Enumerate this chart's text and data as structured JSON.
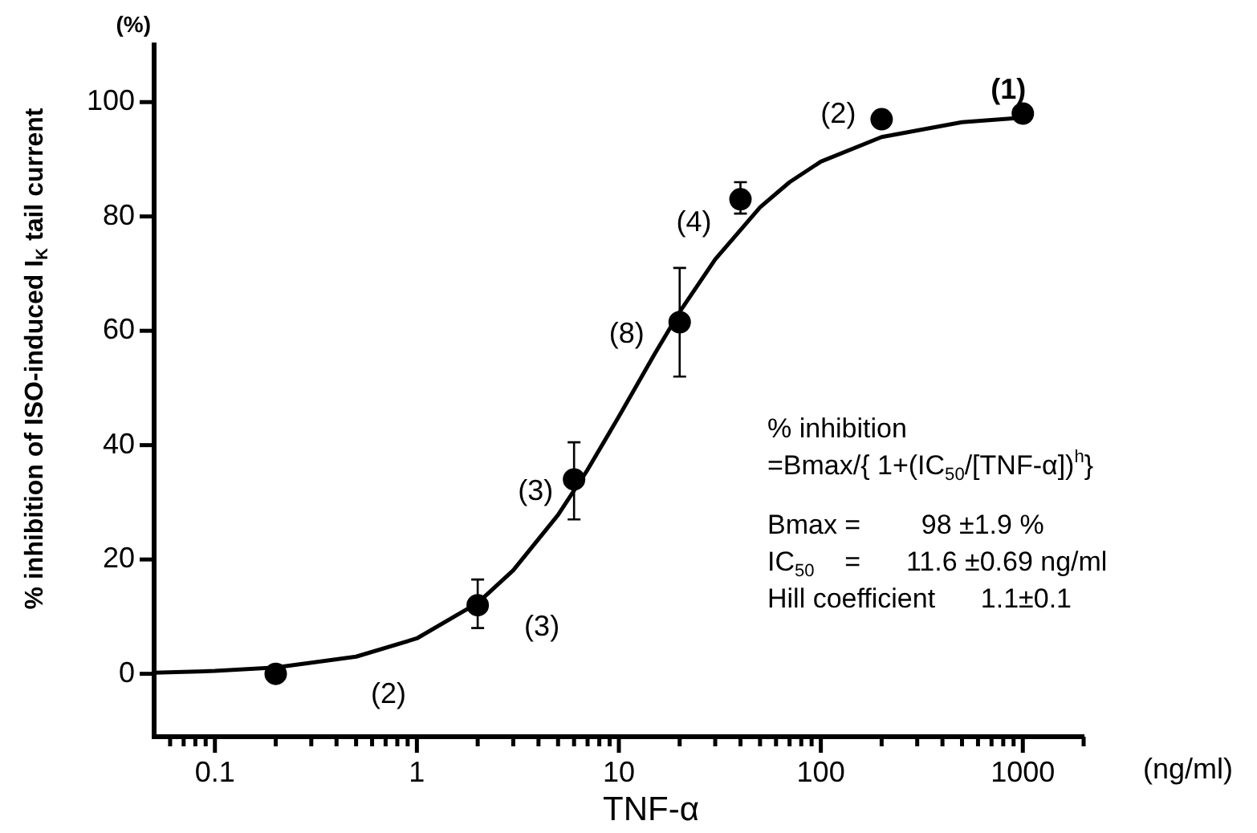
{
  "chart_data": {
    "type": "scatter",
    "xlabel": "TNF-α",
    "ylabel": "% inhibition of ISO-induced I$_{K}$ tail current",
    "log": "x",
    "xlim": [
      0.05,
      2000
    ],
    "ylim": [
      -11,
      110
    ],
    "xticks": [
      {
        "value": 0.06,
        "label": null
      },
      {
        "value": 0.07,
        "label": null
      },
      {
        "value": 0.08,
        "label": null
      },
      {
        "value": 0.09,
        "label": null
      },
      0.1,
      {
        "value": 0.2,
        "label": null
      },
      {
        "value": 0.3,
        "label": null
      },
      {
        "value": 0.4,
        "label": null
      },
      {
        "value": 0.5,
        "label": null
      },
      {
        "value": 0.6,
        "label": null
      },
      {
        "value": 0.7,
        "label": null
      },
      {
        "value": 0.8,
        "label": null
      },
      {
        "value": 0.9,
        "label": null
      },
      1,
      {
        "value": 2,
        "label": null
      },
      {
        "value": 3,
        "label": null
      },
      {
        "value": 4,
        "label": null
      },
      {
        "value": 5,
        "label": null
      },
      {
        "value": 6,
        "label": null
      },
      {
        "value": 7,
        "label": null
      },
      {
        "value": 8,
        "label": null
      },
      {
        "value": 9,
        "label": null
      },
      10,
      {
        "value": 20,
        "label": null
      },
      {
        "value": 30,
        "label": null
      },
      {
        "value": 40,
        "label": null
      },
      {
        "value": 50,
        "label": null
      },
      {
        "value": 60,
        "label": null
      },
      {
        "value": 70,
        "label": null
      },
      {
        "value": 80,
        "label": null
      },
      {
        "value": 90,
        "label": null
      },
      100,
      {
        "value": 200,
        "label": null
      },
      {
        "value": 300,
        "label": null
      },
      {
        "value": 400,
        "label": null
      },
      {
        "value": 500,
        "label": null
      },
      {
        "value": 600,
        "label": null
      },
      {
        "value": 700,
        "label": null
      },
      {
        "value": 800,
        "label": null
      },
      {
        "value": 900,
        "label": null
      },
      1000,
      {
        "value": 2000,
        "label": null
      }
    ],
    "yticks": [
      0,
      20,
      40,
      60,
      80,
      100
    ],
    "grid": false,
    "legend": false,
    "series": [
      {
        "type": "line",
        "color": "#000000",
        "marker": "none",
        "line_style": "solid",
        "x": [
          0.05,
          0.1,
          0.2,
          0.5,
          1,
          2,
          3,
          5,
          7,
          10,
          15,
          20,
          30,
          50,
          70,
          100,
          200,
          500,
          1000
        ],
        "values": [
          0.2,
          0.5,
          1.1,
          3,
          6.2,
          12.4,
          18.1,
          27.8,
          35.7,
          45,
          55.9,
          63.3,
          72.5,
          81.6,
          86,
          89.6,
          93.9,
          96.5,
          97.3
        ]
      },
      {
        "type": "scatter",
        "color": "#000000",
        "marker": "circle",
        "x": [
          0.2,
          2,
          6,
          20,
          40,
          200,
          1000
        ],
        "values": [
          0,
          12,
          34,
          61.5,
          83,
          97,
          98
        ],
        "errors": [
          null,
          [
            8,
            16.5
          ],
          [
            27,
            40.5
          ],
          [
            52,
            71
          ],
          [
            80.5,
            86
          ],
          null,
          null
        ]
      }
    ],
    "annotations": [
      "(%)",
      "(ng/ml)",
      "% inhibition",
      "=Bmax/{ 1+(IC$_{50}$/[TNF-α])$^{h}$}",
      "Bmax =        98 ±1.9 %",
      "IC$_{50}$    =      11.6 ±0.69 ng/ml",
      "Hill coefficient      1.1±0.1",
      "(2)",
      {
        "text": "(3)",
        "x": 2,
        "y": 12
      },
      {
        "text": "(3)",
        "x": 6,
        "y": 34
      },
      {
        "text": "(8)",
        "x": 20,
        "y": 61.5
      },
      {
        "text": "(4)",
        "x": 40,
        "y": 83
      },
      {
        "text": "(2)",
        "x": 200,
        "y": 97
      },
      {
        "text": "(1)",
        "x": 1000,
        "y": 98
      }
    ]
  }
}
